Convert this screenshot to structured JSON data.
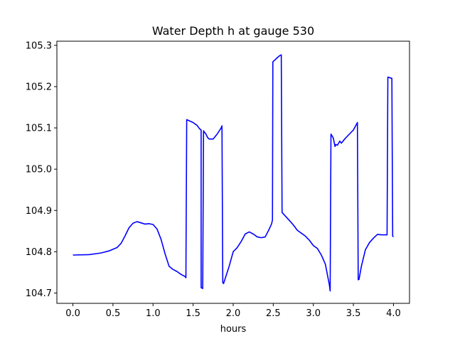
{
  "chart_data": {
    "type": "line",
    "title": "Water Depth h at gauge 530",
    "xlabel": "hours",
    "ylabel": "",
    "xlim": [
      -0.2,
      4.2
    ],
    "ylim": [
      104.675,
      105.31
    ],
    "xticks": [
      0.0,
      0.5,
      1.0,
      1.5,
      2.0,
      2.5,
      3.0,
      3.5,
      4.0
    ],
    "xtick_labels": [
      "0.0",
      "0.5",
      "1.0",
      "1.5",
      "2.0",
      "2.5",
      "3.0",
      "3.5",
      "4.0"
    ],
    "yticks": [
      104.7,
      104.8,
      104.9,
      105.0,
      105.1,
      105.2,
      105.3
    ],
    "ytick_labels": [
      "104.7",
      "104.8",
      "104.9",
      "105.0",
      "105.1",
      "105.2",
      "105.3"
    ],
    "grid": false,
    "line_color": "#0000ff",
    "series": [
      {
        "x": [
          0.0,
          0.2,
          0.35,
          0.45,
          0.55,
          0.6,
          0.65,
          0.7,
          0.75,
          0.8,
          0.85,
          0.9,
          0.95,
          1.0,
          1.05,
          1.1,
          1.15,
          1.2,
          1.25,
          1.3,
          1.35,
          1.4,
          1.41,
          1.42,
          1.5,
          1.55,
          1.58,
          1.6,
          1.6,
          1.62,
          1.63,
          1.64,
          1.66,
          1.68,
          1.7,
          1.75,
          1.8,
          1.85,
          1.86,
          1.87,
          1.88,
          1.95,
          2.0,
          2.05,
          2.1,
          2.15,
          2.2,
          2.25,
          2.3,
          2.35,
          2.4,
          2.45,
          2.48,
          2.49,
          2.495,
          2.55,
          2.58,
          2.6,
          2.61,
          2.62,
          2.7,
          2.75,
          2.8,
          2.85,
          2.9,
          2.95,
          3.0,
          3.05,
          3.1,
          3.15,
          3.2,
          3.21,
          3.22,
          3.23,
          3.25,
          3.27,
          3.28,
          3.3,
          3.33,
          3.35,
          3.4,
          3.45,
          3.5,
          3.55,
          3.56,
          3.57,
          3.6,
          3.65,
          3.7,
          3.75,
          3.8,
          3.85,
          3.9,
          3.92,
          3.93,
          3.98,
          3.99,
          4.0
        ],
        "y": [
          104.792,
          104.793,
          104.797,
          104.802,
          104.81,
          104.82,
          104.838,
          104.858,
          104.869,
          104.873,
          104.87,
          104.867,
          104.868,
          104.866,
          104.855,
          104.83,
          104.795,
          104.765,
          104.757,
          104.752,
          104.745,
          104.74,
          104.737,
          105.12,
          105.113,
          105.106,
          105.098,
          105.095,
          104.713,
          104.711,
          105.093,
          105.09,
          105.085,
          105.077,
          105.073,
          105.073,
          105.085,
          105.1,
          105.105,
          104.725,
          104.723,
          104.765,
          104.8,
          104.81,
          104.825,
          104.843,
          104.848,
          104.843,
          104.836,
          104.834,
          104.836,
          104.855,
          104.868,
          104.877,
          105.26,
          105.27,
          105.275,
          105.277,
          104.895,
          104.893,
          104.876,
          104.865,
          104.852,
          104.845,
          104.838,
          104.828,
          104.815,
          104.808,
          104.792,
          104.77,
          104.72,
          104.705,
          105.085,
          105.082,
          105.075,
          105.055,
          105.06,
          105.058,
          105.068,
          105.063,
          105.075,
          105.085,
          105.095,
          105.113,
          104.732,
          104.733,
          104.765,
          104.805,
          104.822,
          104.833,
          104.842,
          104.841,
          104.841,
          104.841,
          105.223,
          105.22,
          104.838,
          104.836
        ]
      }
    ]
  }
}
